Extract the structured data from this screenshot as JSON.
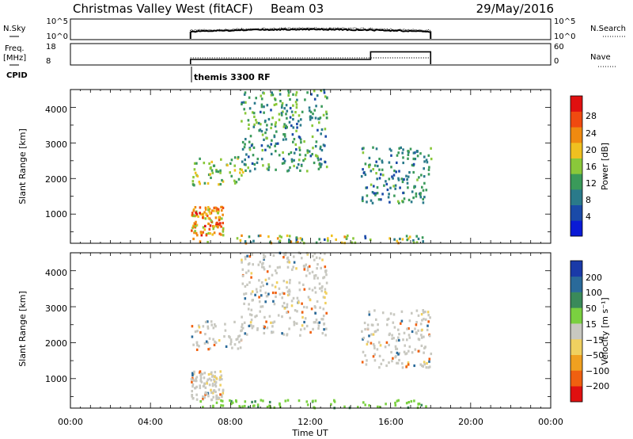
{
  "header": {
    "station": "Christmas Valley West (fitACF)",
    "beam": "Beam 03",
    "date": "29/May/2016"
  },
  "strip_labels": {
    "nsky": "N.Sky",
    "freq_line1": "Freq.",
    "freq_line2": "[MHz]",
    "cpid": "CPID",
    "nsearch": "N.Search",
    "nave": "Nave",
    "cpid_value": "themis 3300 RF"
  },
  "strip_ticks": {
    "noise_left": [
      "10^5",
      "10^0"
    ],
    "noise_right": [
      "10^5",
      "10^0"
    ],
    "freq_left": [
      "18",
      "8"
    ],
    "freq_right": [
      "60",
      "0"
    ]
  },
  "time_axis": {
    "label": "Time UT",
    "ticks": [
      "00:00",
      "04:00",
      "08:00",
      "12:00",
      "16:00",
      "20:00",
      "00:00"
    ]
  },
  "panels": {
    "power": {
      "ylabel": "Slant Range [km]",
      "yticks": [
        "1000",
        "2000",
        "3000",
        "4000"
      ],
      "colorbar_label": "Power [dB]",
      "colorbar_ticks": [
        "4",
        "8",
        "12",
        "16",
        "20",
        "24",
        "28"
      ]
    },
    "velocity": {
      "ylabel": "Slant Range [km]",
      "yticks": [
        "1000",
        "2000",
        "3000",
        "4000"
      ],
      "colorbar_label": "Velocity [m s⁻¹]",
      "colorbar_ticks": [
        "200",
        "100",
        "50",
        "15",
        "−15",
        "−50",
        "−100",
        "−200"
      ]
    }
  },
  "colors": {
    "power_scale": [
      "#0a1ad6",
      "#1a4aa8",
      "#2a7a8a",
      "#3a9a5a",
      "#8ac83a",
      "#f0c020",
      "#f08a10",
      "#f04a10",
      "#e01010"
    ],
    "velocity_scale": [
      "#1a3aa8",
      "#2a6a9a",
      "#3a8a5a",
      "#7ad040",
      "#c8c8c0",
      "#f0d060",
      "#f0a020",
      "#f06010",
      "#e01010"
    ]
  },
  "chart_data": [
    {
      "type": "heatmap",
      "title": "Christmas Valley West (fitACF) Beam 03",
      "xlabel": "Time UT",
      "ylabel": "Slant Range [km]",
      "xlim_hours": [
        0,
        24
      ],
      "ylim_km": [
        180,
        4500
      ],
      "data_coverage_hours": [
        6.0,
        18.0
      ],
      "colorbar": {
        "label": "Power [dB]",
        "range": [
          0,
          30
        ]
      },
      "features": [
        {
          "t": [
            6.0,
            7.6
          ],
          "r": [
            400,
            1200
          ],
          "level_db": [
            14,
            30
          ]
        },
        {
          "t": [
            6.0,
            8.6
          ],
          "r": [
            1800,
            2600
          ],
          "level_db": [
            10,
            20
          ]
        },
        {
          "t": [
            8.5,
            12.8
          ],
          "r": [
            2200,
            4500
          ],
          "level_db": [
            4,
            16
          ]
        },
        {
          "t": [
            14.5,
            18.0
          ],
          "r": [
            1300,
            2900
          ],
          "level_db": [
            4,
            14
          ]
        },
        {
          "t": [
            6.0,
            18.0
          ],
          "r": [
            180,
            400
          ],
          "level_db": [
            4,
            24
          ]
        }
      ]
    },
    {
      "type": "heatmap",
      "title": "Christmas Valley West (fitACF) Beam 03",
      "xlabel": "Time UT",
      "ylabel": "Slant Range [km]",
      "xlim_hours": [
        0,
        24
      ],
      "ylim_km": [
        180,
        4500
      ],
      "data_coverage_hours": [
        6.0,
        18.0
      ],
      "colorbar": {
        "label": "Velocity [m s⁻¹]",
        "range": [
          -250,
          250
        ]
      },
      "features": [
        {
          "t": [
            6.0,
            7.6
          ],
          "r": [
            400,
            1200
          ],
          "velocity": [
            -15,
            15
          ]
        },
        {
          "t": [
            6.0,
            8.6
          ],
          "r": [
            1800,
            2600
          ],
          "velocity": [
            -15,
            15
          ]
        },
        {
          "t": [
            8.5,
            12.8
          ],
          "r": [
            2200,
            4500
          ],
          "velocity": [
            -50,
            50
          ]
        },
        {
          "t": [
            14.5,
            18.0
          ],
          "r": [
            1300,
            2900
          ],
          "velocity": [
            -15,
            15
          ]
        },
        {
          "t": [
            6.0,
            18.0
          ],
          "r": [
            180,
            400
          ],
          "velocity": [
            15,
            50
          ]
        }
      ]
    }
  ],
  "strip_data": {
    "frequency_mhz": [
      {
        "t": [
          6.0,
          15.0
        ],
        "value": 10.5
      },
      {
        "t": [
          15.0,
          18.0
        ],
        "value": 14.5
      }
    ],
    "nave": [
      {
        "t": [
          6.0,
          15.0
        ],
        "value": 20
      },
      {
        "t": [
          15.0,
          18.0
        ],
        "value": 20
      }
    ]
  }
}
